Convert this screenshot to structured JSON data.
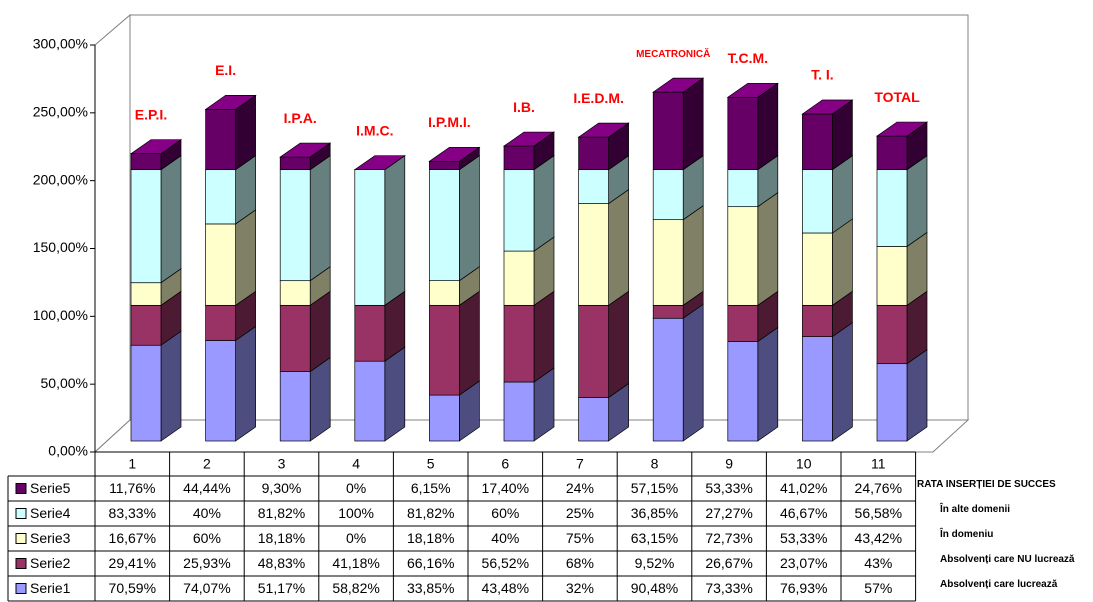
{
  "chart_data": {
    "type": "bar3d_stacked",
    "categories": [
      "1",
      "2",
      "3",
      "4",
      "5",
      "6",
      "7",
      "8",
      "9",
      "10",
      "11"
    ],
    "annotations": [
      "E.P.I.",
      "E.I.",
      "I.P.A.",
      "I.M.C.",
      "I.P.M.I.",
      "I.B.",
      "I.E.D.M.",
      "MECATRONICĂ",
      "T.C.M.",
      "T. I.",
      "TOTAL"
    ],
    "ylim": [
      0,
      300
    ],
    "yticks": [
      {
        "value": 0,
        "label": "0,00%"
      },
      {
        "value": 50,
        "label": "50,00%"
      },
      {
        "value": 100,
        "label": "100,00%"
      },
      {
        "value": 150,
        "label": "150,00%"
      },
      {
        "value": 200,
        "label": "200,00%"
      },
      {
        "value": 250,
        "label": "250,00%"
      },
      {
        "value": 300,
        "label": "300,00%"
      }
    ],
    "series": [
      {
        "name": "Serie1",
        "color": "#9999ff",
        "row_label": "Absolvenți care lucrează",
        "values": [
          70.59,
          74.07,
          51.17,
          58.82,
          33.85,
          43.48,
          32,
          90.48,
          73.33,
          76.93,
          57
        ],
        "value_labels": [
          "70,59%",
          "74,07%",
          "51,17%",
          "58,82%",
          "33,85%",
          "43,48%",
          "32%",
          "90,48%",
          "73,33%",
          "76,93%",
          "57%"
        ]
      },
      {
        "name": "Serie2",
        "color": "#993366",
        "row_label": "Absolvenți care NU lucrează",
        "values": [
          29.41,
          25.93,
          48.83,
          41.18,
          66.16,
          56.52,
          68,
          9.52,
          26.67,
          23.07,
          43
        ],
        "value_labels": [
          "29,41%",
          "25,93%",
          "48,83%",
          "41,18%",
          "66,16%",
          "56,52%",
          "68%",
          "9,52%",
          "26,67%",
          "23,07%",
          "43%"
        ]
      },
      {
        "name": "Serie3",
        "color": "#ffffcc",
        "row_label": "În domeniu",
        "values": [
          16.67,
          60,
          18.18,
          0,
          18.18,
          40,
          75,
          63.15,
          72.73,
          53.33,
          43.42
        ],
        "value_labels": [
          "16,67%",
          "60%",
          "18,18%",
          "0%",
          "18,18%",
          "40%",
          "75%",
          "63,15%",
          "72,73%",
          "53,33%",
          "43,42%"
        ]
      },
      {
        "name": "Serie4",
        "color": "#ccffff",
        "row_label": "În alte domenii",
        "values": [
          83.33,
          40,
          81.82,
          100,
          81.82,
          60,
          25,
          36.85,
          27.27,
          46.67,
          56.58
        ],
        "value_labels": [
          "83,33%",
          "40%",
          "81,82%",
          "100%",
          "81,82%",
          "60%",
          "25%",
          "36,85%",
          "27,27%",
          "46,67%",
          "56,58%"
        ]
      },
      {
        "name": "Serie5",
        "color": "#660066",
        "row_label": "RATA INSERȚIEI DE SUCCES",
        "values": [
          11.76,
          44.44,
          9.3,
          0,
          6.15,
          17.4,
          24,
          57.15,
          53.33,
          41.02,
          24.76
        ],
        "value_labels": [
          "11,76%",
          "44,44%",
          "9,30%",
          "0%",
          "6,15%",
          "17,40%",
          "24%",
          "57,15%",
          "53,33%",
          "41,02%",
          "24,76%"
        ]
      }
    ]
  }
}
